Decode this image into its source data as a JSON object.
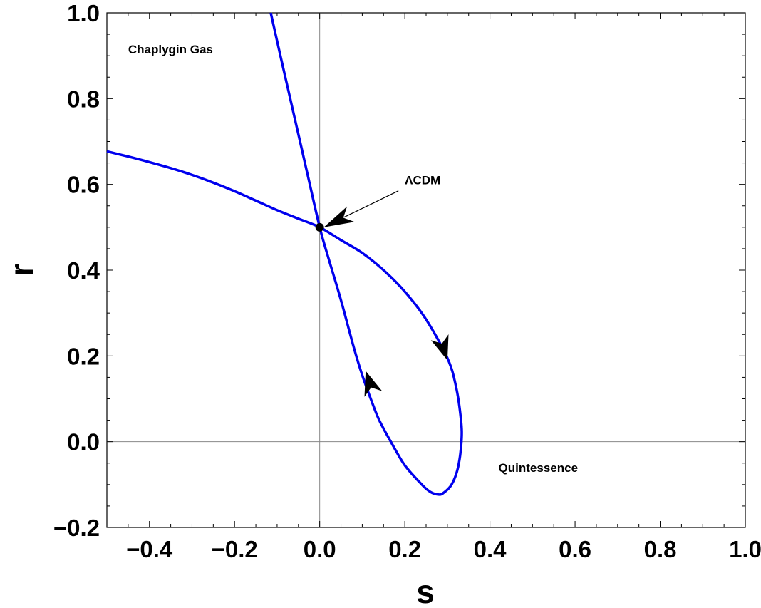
{
  "chart_data": {
    "type": "line",
    "title": "",
    "xlabel": "s",
    "ylabel": "r",
    "xlim": [
      -0.5,
      1.0
    ],
    "ylim": [
      -0.2,
      1.0
    ],
    "grid": false,
    "x_ticks": [
      {
        "value": -0.4,
        "label": "−0.4"
      },
      {
        "value": -0.2,
        "label": "−0.2"
      },
      {
        "value": 0.0,
        "label": "0.0"
      },
      {
        "value": 0.2,
        "label": "0.2"
      },
      {
        "value": 0.4,
        "label": "0.4"
      },
      {
        "value": 0.6,
        "label": "0.6"
      },
      {
        "value": 0.8,
        "label": "0.8"
      },
      {
        "value": 1.0,
        "label": "1.0"
      }
    ],
    "y_ticks": [
      {
        "value": -0.2,
        "label": "−0.2"
      },
      {
        "value": 0.0,
        "label": "0.0"
      },
      {
        "value": 0.2,
        "label": "0.2"
      },
      {
        "value": 0.4,
        "label": "0.4"
      },
      {
        "value": 0.6,
        "label": "0.6"
      },
      {
        "value": 0.8,
        "label": "0.8"
      },
      {
        "value": 1.0,
        "label": "1.0"
      }
    ],
    "line_color": "#0000ee",
    "series": [
      {
        "points": [
          [
            -0.5,
            0.677
          ],
          [
            -0.45,
            0.665
          ],
          [
            -0.4,
            0.652
          ],
          [
            -0.35,
            0.638
          ],
          [
            -0.3,
            0.622
          ],
          [
            -0.25,
            0.604
          ],
          [
            -0.2,
            0.584
          ],
          [
            -0.15,
            0.562
          ],
          [
            -0.1,
            0.54
          ],
          [
            -0.05,
            0.52
          ],
          [
            0.0,
            0.5
          ],
          [
            0.05,
            0.47
          ],
          [
            0.1,
            0.44
          ],
          [
            0.15,
            0.4
          ],
          [
            0.2,
            0.35
          ],
          [
            0.25,
            0.285
          ],
          [
            0.3,
            0.195
          ],
          [
            0.32,
            0.13
          ],
          [
            0.332,
            0.05
          ],
          [
            0.333,
            0.0
          ],
          [
            0.325,
            -0.06
          ],
          [
            0.31,
            -0.1
          ],
          [
            0.29,
            -0.12
          ],
          [
            0.278,
            -0.123
          ],
          [
            0.26,
            -0.117
          ],
          [
            0.24,
            -0.1
          ],
          [
            0.2,
            -0.055
          ],
          [
            0.17,
            -0.005
          ],
          [
            0.14,
            0.05
          ],
          [
            0.12,
            0.1
          ],
          [
            0.1,
            0.155
          ],
          [
            0.08,
            0.22
          ],
          [
            0.05,
            0.33
          ],
          [
            0.02,
            0.43
          ],
          [
            0.0,
            0.5
          ],
          [
            -0.03,
            0.63
          ],
          [
            -0.06,
            0.76
          ],
          [
            -0.09,
            0.89
          ],
          [
            -0.115,
            1.0
          ]
        ]
      }
    ],
    "arrows": [
      {
        "at": [
          0.295,
          0.205
        ],
        "toward": [
          0.3,
          0.19
        ],
        "direction": "down"
      },
      {
        "at": [
          0.113,
          0.15
        ],
        "toward": [
          0.108,
          0.165
        ],
        "direction": "up"
      }
    ],
    "point": {
      "x": 0.0,
      "y": 0.5,
      "color": "#000000"
    },
    "annotations": [
      {
        "text": "Chaplygin Gas",
        "x": -0.45,
        "y": 0.905
      },
      {
        "text": "ΛCDM",
        "x": 0.2,
        "y": 0.6
      },
      {
        "text": "Quintessence",
        "x": 0.42,
        "y": -0.07
      }
    ],
    "annotation_arrow": {
      "from": [
        0.185,
        0.585
      ],
      "to": [
        0.01,
        0.5
      ]
    }
  }
}
